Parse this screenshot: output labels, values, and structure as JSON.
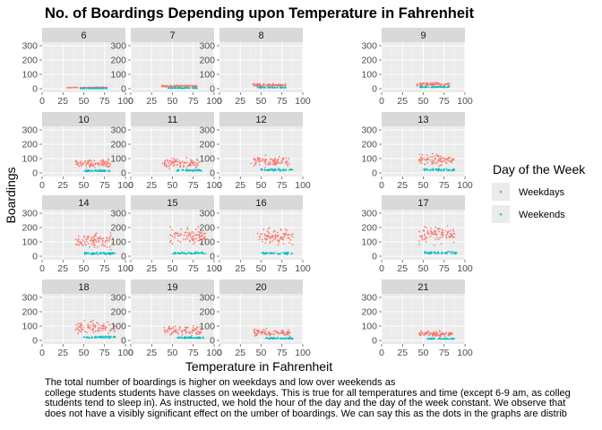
{
  "chart_data": {
    "type": "scatter",
    "title": "No. of Boardings Depending upon Temperature in Fahrenheit",
    "xlabel": "Temperature in Fahrenheit",
    "ylabel": "Boardings",
    "xlim": [
      0,
      100
    ],
    "ylim": [
      0,
      300
    ],
    "x_ticks": [
      0,
      25,
      50,
      75,
      100
    ],
    "y_ticks": [
      0,
      100,
      200,
      300
    ],
    "x_tick_labels": [
      "0",
      "25",
      "50",
      "75",
      "100"
    ],
    "y_tick_labels": [
      "0",
      "100",
      "200",
      "300"
    ],
    "facet_by": "hour",
    "facets": [
      "6",
      "7",
      "8",
      "9",
      "10",
      "11",
      "12",
      "13",
      "14",
      "15",
      "16",
      "17",
      "18",
      "19",
      "20",
      "21"
    ],
    "legend": {
      "title": "Day of the Week",
      "position": "right",
      "entries": [
        {
          "label": "Weekdays",
          "color": "#F8766D",
          "shape": "circle"
        },
        {
          "label": "Weekends",
          "color": "#00BFC4",
          "shape": "triangle"
        }
      ]
    },
    "series": [
      {
        "name": "Weekdays",
        "color": "#F8766D",
        "temp_range_by_facet": [
          [
            30,
            78
          ],
          [
            37,
            80
          ],
          [
            40,
            80
          ],
          [
            42,
            82
          ],
          [
            40,
            82
          ],
          [
            38,
            82
          ],
          [
            38,
            85
          ],
          [
            45,
            88
          ],
          [
            40,
            85
          ],
          [
            45,
            90
          ],
          [
            45,
            88
          ],
          [
            45,
            90
          ],
          [
            40,
            88
          ],
          [
            40,
            85
          ],
          [
            40,
            85
          ],
          [
            45,
            85
          ]
        ],
        "boardings_center_by_facet": [
          8,
          18,
          25,
          30,
          65,
          70,
          80,
          90,
          110,
          140,
          140,
          150,
          90,
          70,
          55,
          45
        ],
        "boardings_spread_by_facet": [
          4,
          8,
          12,
          18,
          40,
          45,
          50,
          55,
          70,
          80,
          80,
          90,
          70,
          45,
          35,
          25
        ]
      },
      {
        "name": "Weekends",
        "color": "#00BFC4",
        "temp_range_by_facet": [
          [
            45,
            78
          ],
          [
            45,
            80
          ],
          [
            45,
            80
          ],
          [
            45,
            82
          ],
          [
            50,
            82
          ],
          [
            55,
            85
          ],
          [
            50,
            88
          ],
          [
            50,
            88
          ],
          [
            50,
            88
          ],
          [
            50,
            90
          ],
          [
            50,
            88
          ],
          [
            50,
            90
          ],
          [
            50,
            88
          ],
          [
            55,
            88
          ],
          [
            55,
            88
          ],
          [
            55,
            88
          ]
        ],
        "boardings_center_by_facet": [
          3,
          5,
          8,
          12,
          15,
          18,
          22,
          22,
          20,
          22,
          22,
          25,
          22,
          20,
          15,
          12
        ],
        "boardings_spread_by_facet": [
          2,
          3,
          4,
          6,
          8,
          8,
          10,
          10,
          10,
          10,
          10,
          12,
          10,
          8,
          6,
          5
        ]
      }
    ]
  },
  "caption": {
    "line1": "The total number of boardings is higher on weekdays and low over weekends as",
    "line2": "college students students have classes on weekdays. This is true for all temperatures and time (except 6-9 am, as colleg",
    "line3": "students tend to sleep in). As instructed, we hold the hour of the day and the day of the week constant. We observe that",
    "line4": "does not have a visibly significant effect on the umber of boardings. We can say this as the dots in the graphs are distrib"
  }
}
